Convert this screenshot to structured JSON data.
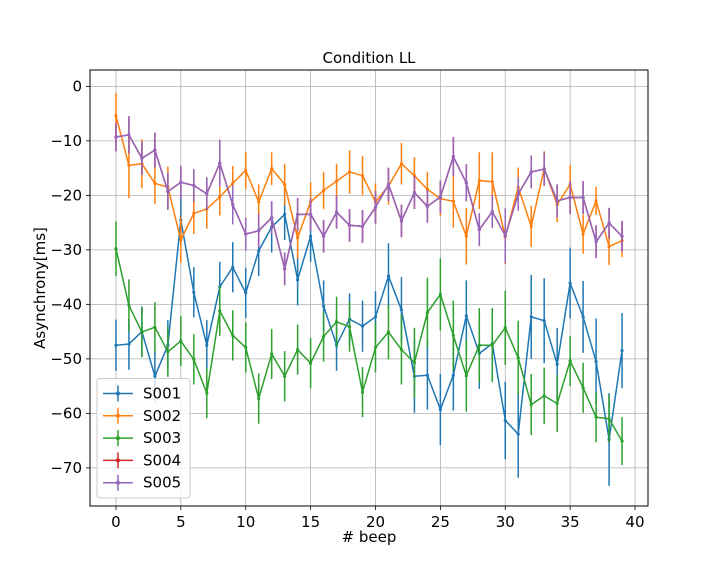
{
  "chart_data": {
    "type": "line",
    "title": "Condition LL",
    "xlabel": "# beep",
    "ylabel": "Asynchrony[ms]",
    "xlim": [
      -2,
      41
    ],
    "ylim": [
      -77,
      3
    ],
    "xticks": [
      0,
      5,
      10,
      15,
      20,
      25,
      30,
      35,
      40
    ],
    "yticks": [
      0,
      -10,
      -20,
      -30,
      -40,
      -50,
      -60,
      -70
    ],
    "grid": true,
    "legend_position": "lower-left",
    "x": [
      0,
      1,
      2,
      3,
      4,
      5,
      6,
      7,
      8,
      9,
      10,
      11,
      12,
      13,
      14,
      15,
      16,
      17,
      18,
      19,
      20,
      21,
      22,
      23,
      24,
      25,
      26,
      27,
      28,
      29,
      30,
      31,
      32,
      33,
      34,
      35,
      36,
      37,
      38,
      39
    ],
    "series": [
      {
        "name": "S001",
        "color": "#1f77b4",
        "values": [
          -47.5,
          -47.3,
          -45,
          -53.2,
          -47.5,
          -24.5,
          -37.8,
          -47.5,
          -36.8,
          -33.2,
          -37.9,
          -30.2,
          -25.8,
          -23.5,
          -35.5,
          -27.5,
          -40.3,
          -47.5,
          -42.7,
          -44,
          -42.3,
          -34.8,
          -41,
          -53.2,
          -53,
          -59.3,
          -53,
          -42.1,
          -49,
          -47.2,
          -61.3,
          -63.8,
          -42.3,
          -43,
          -51,
          -36.1,
          -42.3,
          -50.5,
          -64.8,
          -48.5
        ],
        "errors": [
          4.7,
          4.7,
          4.6,
          4.6,
          4.6,
          4.6,
          4.6,
          4.6,
          4.6,
          4.6,
          4.6,
          4.6,
          4.7,
          4.7,
          4.7,
          4.7,
          4.7,
          4.7,
          4.7,
          4.7,
          4.7,
          6.0,
          6.0,
          6.7,
          6.3,
          6.5,
          6.5,
          6.5,
          6.5,
          6.5,
          7.1,
          8.0,
          7.7,
          7.8,
          6.7,
          6.5,
          6.6,
          7.9,
          8.5,
          6.9
        ]
      },
      {
        "name": "S002",
        "color": "#ff7f0e",
        "values": [
          -5.4,
          -14.5,
          -14.2,
          -17.8,
          -18.5,
          -28.2,
          -23.3,
          -22.5,
          -20.3,
          -17.8,
          -15.4,
          -21.2,
          -15.1,
          -18,
          -27.8,
          -21.2,
          -19.1,
          -17.4,
          -15.7,
          -16.4,
          -21.2,
          -18.3,
          -14.2,
          -16.4,
          -18.9,
          -20.6,
          -21.1,
          -27.5,
          -17.3,
          -17.5,
          -27.6,
          -18.5,
          -25.7,
          -15.1,
          -21.7,
          -18,
          -27.1,
          -21,
          -29.4,
          -28.3
        ],
        "errors": [
          4.2,
          6.0,
          4.5,
          3.8,
          3.8,
          4.2,
          3.8,
          3.6,
          3.4,
          3.2,
          3.4,
          3.2,
          3.0,
          3.8,
          3.8,
          3.6,
          3.4,
          3.2,
          4.0,
          3.6,
          3.4,
          3.4,
          3.8,
          3.4,
          3.2,
          3.2,
          4.8,
          5.2,
          5.2,
          5.4,
          5.0,
          3.6,
          3.8,
          3.2,
          3.2,
          3.6,
          3.6,
          2.6,
          3.4,
          3.0
        ]
      },
      {
        "name": "S003",
        "color": "#2ca02c",
        "values": [
          -29.8,
          -40.2,
          -45.1,
          -44.2,
          -48.7,
          -46.7,
          -50.1,
          -56.3,
          -41.2,
          -45.7,
          -47.9,
          -57.3,
          -49.1,
          -53.2,
          -48.3,
          -50.8,
          -45.9,
          -43.2,
          -44.1,
          -56.1,
          -47.9,
          -45.1,
          -48.3,
          -50.7,
          -41.5,
          -38.2,
          -45.7,
          -53.1,
          -47.5,
          -47.5,
          -44.3,
          -49.8,
          -58.4,
          -56.8,
          -58.2,
          -50.4,
          -55.3,
          -60.7,
          -61,
          -65.1
        ],
        "errors": [
          5.0,
          4.8,
          4.6,
          4.6,
          4.6,
          4.6,
          4.6,
          4.6,
          4.6,
          4.6,
          4.6,
          4.6,
          4.6,
          4.6,
          4.6,
          4.6,
          4.6,
          4.6,
          4.6,
          4.6,
          4.6,
          5.0,
          6.4,
          6.4,
          6.4,
          6.6,
          6.4,
          6.6,
          6.8,
          6.8,
          6.8,
          6.8,
          5.6,
          5.2,
          5.2,
          4.6,
          4.6,
          4.6,
          4.4,
          4.4
        ]
      },
      {
        "name": "S004",
        "color": "#d62728",
        "values": [
          -9.3,
          -8.9,
          -13.2,
          -11.7,
          -19.3,
          -17.6,
          -18.2,
          -19.7,
          -14.1,
          -21.7,
          -27.1,
          -26.5,
          -24.1,
          -33.5,
          -23.5,
          -23.5,
          -27.5,
          -23.1,
          -25.5,
          -25.7,
          -22.2,
          -18,
          -24.7,
          -19.5,
          -22,
          -20.3,
          -12.9,
          -17.7,
          -26.3,
          -23,
          -27.4,
          -19.8,
          -15.7,
          -15.2,
          -21,
          -20.4,
          -20.4,
          -28.5,
          -25.1,
          -27.5
        ],
        "errors": [
          2.6,
          3.4,
          3.0,
          3.2,
          3.4,
          3.0,
          3.0,
          3.0,
          4.3,
          3.6,
          3.0,
          3.0,
          3.0,
          3.0,
          3.0,
          3.0,
          3.0,
          3.0,
          3.0,
          3.0,
          3.0,
          3.0,
          3.0,
          3.0,
          3.0,
          3.0,
          3.6,
          3.4,
          3.0,
          3.0,
          5.0,
          3.0,
          3.0,
          3.0,
          3.0,
          3.0,
          3.0,
          3.0,
          2.8,
          2.8
        ]
      },
      {
        "name": "S005",
        "color": "#9467bd",
        "values": [
          -9.3,
          -8.9,
          -13.2,
          -11.7,
          -19.3,
          -17.6,
          -18.2,
          -19.7,
          -14.1,
          -21.7,
          -27.1,
          -26.5,
          -24.1,
          -33.5,
          -23.5,
          -23.5,
          -27.5,
          -23.1,
          -25.5,
          -25.7,
          -22.2,
          -18,
          -24.7,
          -19.5,
          -22,
          -20.3,
          -12.9,
          -17.7,
          -26.3,
          -23,
          -27.4,
          -19.8,
          -15.7,
          -15.2,
          -21,
          -20.4,
          -20.4,
          -28.5,
          -25.1,
          -27.5
        ],
        "errors": [
          2.6,
          3.4,
          3.0,
          3.2,
          3.4,
          3.0,
          3.0,
          3.0,
          4.3,
          3.6,
          3.0,
          3.0,
          3.0,
          3.0,
          3.0,
          3.0,
          3.0,
          3.0,
          3.0,
          3.0,
          3.0,
          3.0,
          3.0,
          3.0,
          3.0,
          3.0,
          3.6,
          3.4,
          3.0,
          3.0,
          5.0,
          3.0,
          3.0,
          3.0,
          3.0,
          3.0,
          3.0,
          3.0,
          2.8,
          2.8
        ]
      }
    ]
  }
}
